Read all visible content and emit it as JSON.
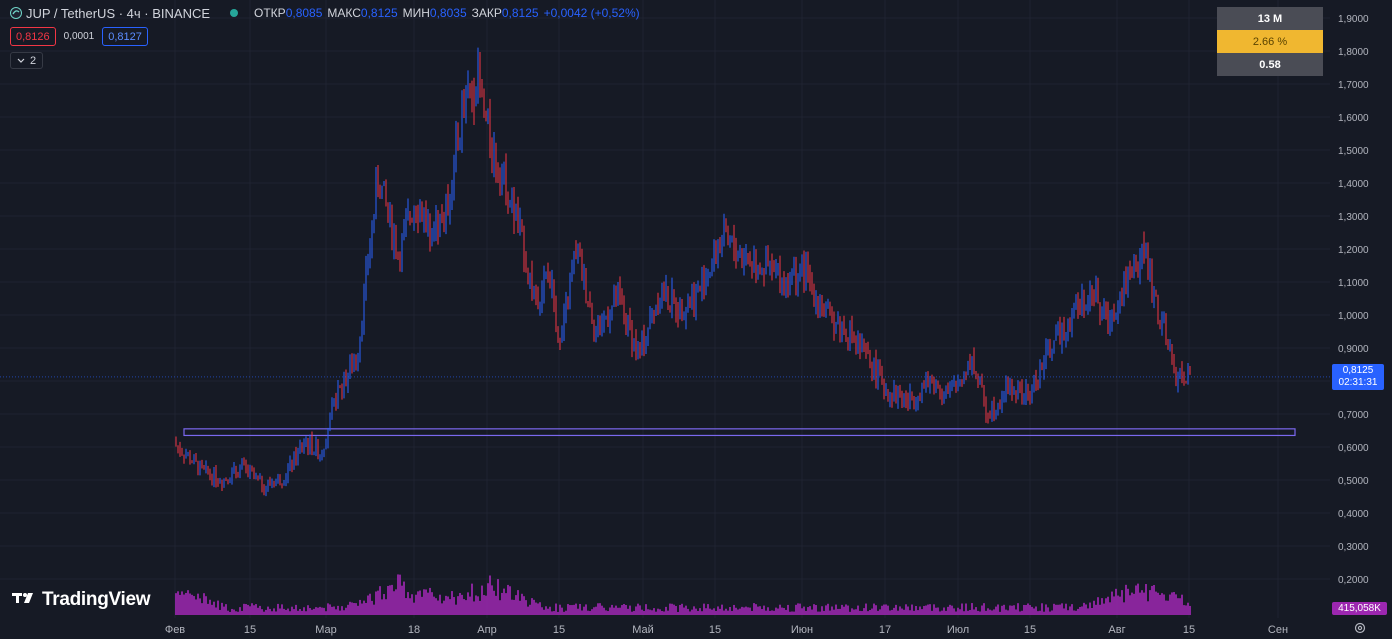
{
  "header": {
    "symbol": "JUP / TetherUS · 4ч · BINANCE",
    "open_label": "ОТКР",
    "open": "0,8085",
    "high_label": "МАКС",
    "high": "0,8125",
    "low_label": "МИН",
    "low": "0,8035",
    "close_label": "ЗАКР",
    "close": "0,8125",
    "change": "+0,0042 (+0,52%)",
    "status_color": "#26a69a"
  },
  "quote": {
    "bid": "0,8126",
    "spread": "0,0001",
    "ask": "0,8127"
  },
  "indicators_toggle": {
    "count": "2"
  },
  "infobox": {
    "line1": "13 M",
    "line2": "2.66 %",
    "line3": "0.58"
  },
  "price_axis": {
    "ticks": [
      "1,9000",
      "1,8000",
      "1,7000",
      "1,6000",
      "1,5000",
      "1,4000",
      "1,3000",
      "1,2000",
      "1,1000",
      "1,0000",
      "0,9000",
      "0,8000",
      "0,7000",
      "0,6000",
      "0,5000",
      "0,4000",
      "0,3000",
      "0,2000"
    ],
    "current_price": "0,8125",
    "countdown": "02:31:31",
    "volume_label": "415,058K"
  },
  "time_axis": {
    "ticks": [
      "Фев",
      "15",
      "Мар",
      "18",
      "Апр",
      "15",
      "Май",
      "15",
      "Июн",
      "17",
      "Июл",
      "15",
      "Авг",
      "15",
      "Сен"
    ]
  },
  "branding": {
    "logo_text": "TradingView"
  },
  "colors": {
    "up": "#2962ff",
    "down": "#f23645",
    "volume": "#9c27b0",
    "background": "#161a25",
    "zone": "#7b68ee"
  },
  "chart_data": {
    "type": "candlestick",
    "symbol": "JUP/USDT",
    "ylim": [
      0.17,
      1.93
    ],
    "x": [
      "2024-01-31",
      "2024-02-03",
      "2024-02-06",
      "2024-02-10",
      "2024-02-14",
      "2024-02-18",
      "2024-02-22",
      "2024-02-26",
      "2024-02-29",
      "2024-03-03",
      "2024-03-07",
      "2024-03-11",
      "2024-03-15",
      "2024-03-18",
      "2024-03-21",
      "2024-03-24",
      "2024-03-27",
      "2024-03-30",
      "2024-04-01",
      "2024-04-04",
      "2024-04-07",
      "2024-04-10",
      "2024-04-13",
      "2024-04-15",
      "2024-04-18",
      "2024-04-22",
      "2024-04-26",
      "2024-04-30",
      "2024-05-04",
      "2024-05-08",
      "2024-05-12",
      "2024-05-16",
      "2024-05-20",
      "2024-05-24",
      "2024-05-28",
      "2024-06-01",
      "2024-06-05",
      "2024-06-09",
      "2024-06-13",
      "2024-06-17",
      "2024-06-21",
      "2024-06-25",
      "2024-06-29",
      "2024-07-03",
      "2024-07-06",
      "2024-07-10",
      "2024-07-14",
      "2024-07-18",
      "2024-07-22",
      "2024-07-26",
      "2024-07-29",
      "2024-08-02",
      "2024-08-05",
      "2024-08-08",
      "2024-08-11",
      "2024-08-14"
    ],
    "close": [
      0.62,
      0.58,
      0.53,
      0.5,
      0.54,
      0.48,
      0.51,
      0.62,
      0.58,
      0.75,
      0.88,
      1.42,
      1.18,
      1.35,
      1.27,
      1.3,
      1.6,
      1.72,
      1.55,
      1.42,
      1.27,
      1.05,
      1.12,
      0.9,
      1.2,
      0.95,
      1.05,
      0.88,
      1.07,
      1.02,
      1.08,
      1.23,
      1.18,
      1.15,
      1.1,
      1.13,
      1.0,
      0.95,
      0.87,
      0.77,
      0.74,
      0.8,
      0.76,
      0.87,
      0.7,
      0.78,
      0.75,
      0.9,
      1.0,
      1.08,
      0.98,
      1.12,
      1.2,
      1.0,
      0.82,
      0.81
    ],
    "volume_peak_dates": [
      "2024-01-31",
      "2024-03-15",
      "2024-04-01",
      "2024-08-05"
    ],
    "support_zone": [
      0.635,
      0.655
    ],
    "last_price": 0.8125,
    "last_volume": "415,058K"
  }
}
